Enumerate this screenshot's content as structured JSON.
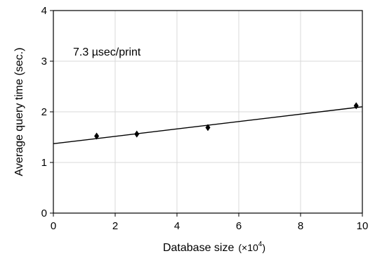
{
  "chart_data": {
    "type": "scatter",
    "title": "",
    "xlabel": "Database size",
    "xlabel_unit_prefix": "(×10",
    "xlabel_unit_exp": "4",
    "xlabel_unit_suffix": ")",
    "ylabel": "Average query time (sec.)",
    "xlim": [
      0,
      10
    ],
    "ylim": [
      0,
      4
    ],
    "xticks": [
      "0",
      "2",
      "4",
      "6",
      "8",
      "10"
    ],
    "yticks": [
      "0",
      "1",
      "2",
      "3",
      "4"
    ],
    "grid": true,
    "annotation": "7.3 µsec/print",
    "points": [
      {
        "x": 1.4,
        "y": 1.52
      },
      {
        "x": 2.7,
        "y": 1.56
      },
      {
        "x": 5.0,
        "y": 1.69
      },
      {
        "x": 9.8,
        "y": 2.12
      }
    ],
    "fit_line": {
      "x": [
        0,
        10
      ],
      "y": [
        1.37,
        2.1
      ]
    }
  }
}
